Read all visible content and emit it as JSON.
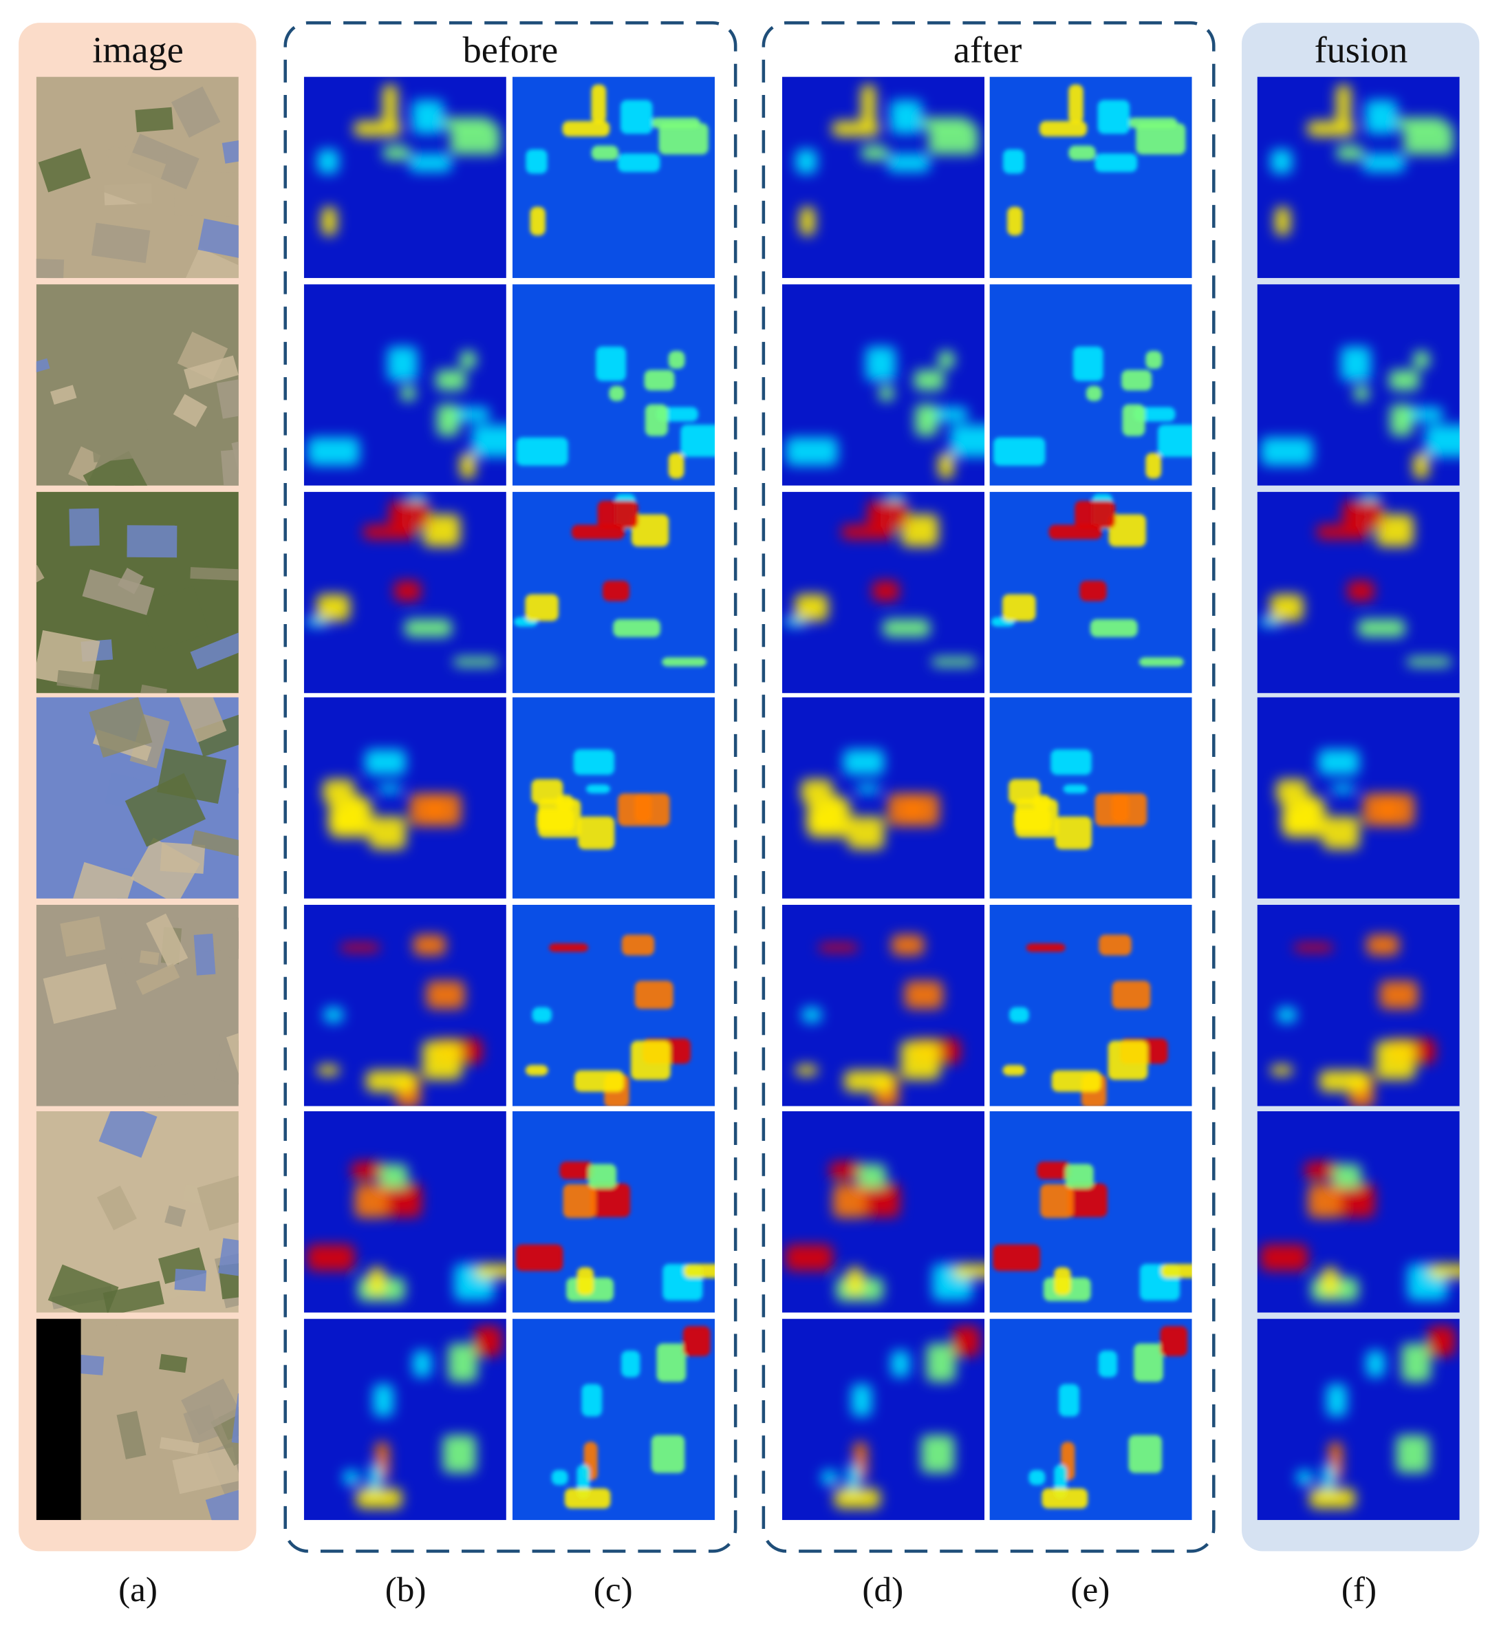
{
  "panels": [
    {
      "title": "image"
    },
    {
      "title": "before"
    },
    {
      "title": "after"
    },
    {
      "title": "fusion"
    }
  ],
  "column_labels": [
    "(a)",
    "(b)",
    "(c)",
    "(d)",
    "(e)",
    "(f)"
  ]
}
